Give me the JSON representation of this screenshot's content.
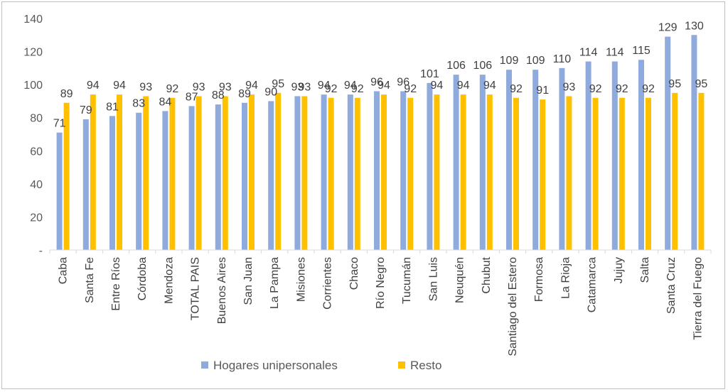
{
  "chart_data": {
    "type": "bar",
    "categories": [
      "Caba",
      "Santa Fe",
      "Entre Ríos",
      "Córdoba",
      "Mendoza",
      "TOTAL PAIS",
      "Buenos Aires",
      "San Juan",
      "La Pampa",
      "Misiones",
      "Corrientes",
      "Chaco",
      "Río Negro",
      "Tucumán",
      "San Luis",
      "Neuquén",
      "Chubut",
      "Santiago del Estero",
      "Formosa",
      "La Rioja",
      "Catamarca",
      "Jujuy",
      "Salta",
      "Santa Cruz",
      "Tierra del Fuego"
    ],
    "series": [
      {
        "name": "Hogares unipersonales",
        "color": "#8faadc",
        "values": [
          71,
          79,
          81,
          83,
          84,
          87,
          88,
          89,
          90,
          93,
          94,
          94,
          96,
          96,
          101,
          106,
          106,
          109,
          109,
          110,
          114,
          114,
          115,
          129,
          130
        ]
      },
      {
        "name": "Resto",
        "color": "#ffc000",
        "values": [
          89,
          94,
          94,
          93,
          92,
          93,
          93,
          94,
          95,
          93,
          92,
          92,
          94,
          92,
          94,
          94,
          94,
          92,
          91,
          93,
          92,
          92,
          92,
          95,
          95
        ]
      }
    ],
    "title": "",
    "xlabel": "",
    "ylabel": "",
    "ylim": [
      0,
      140
    ],
    "yticks": [
      0,
      20,
      40,
      60,
      80,
      100,
      120,
      140
    ],
    "ytick_labels": [
      "-",
      "20",
      "40",
      "60",
      "80",
      "100",
      "120",
      "140"
    ],
    "grid": false,
    "legend_position": "bottom"
  }
}
